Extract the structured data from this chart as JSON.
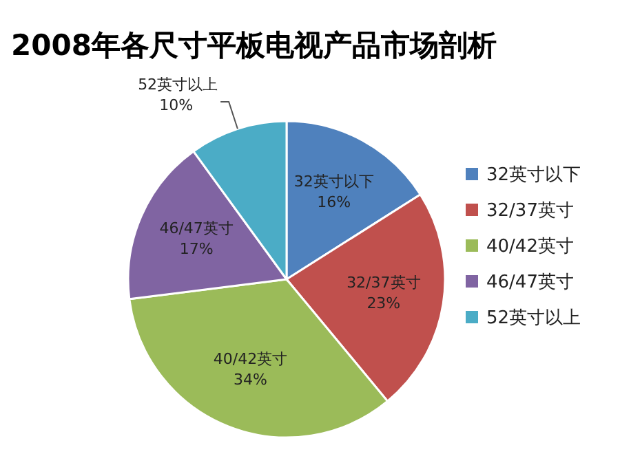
{
  "chart_data": {
    "type": "pie",
    "title": "2008年各尺寸平板电视产品市场剖析",
    "categories": [
      "32英寸以下",
      "32/37英寸",
      "40/42英寸",
      "46/47英寸",
      "52英寸以上"
    ],
    "values": [
      16,
      23,
      34,
      17,
      10
    ],
    "value_labels": [
      "16%",
      "23%",
      "34%",
      "17%",
      "10%"
    ],
    "colors": [
      "#4f81bd",
      "#c0504d",
      "#9bbb59",
      "#8064a2",
      "#4bacc6"
    ],
    "legend": "right"
  }
}
